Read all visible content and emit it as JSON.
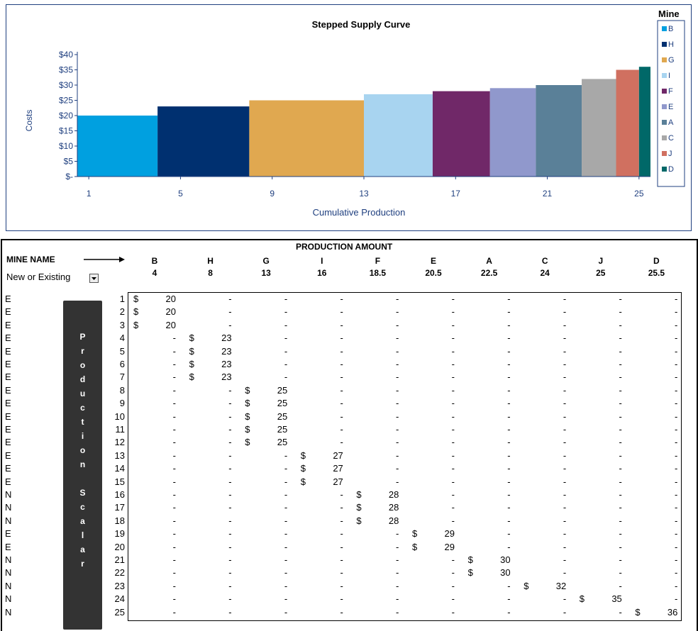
{
  "chart_data": {
    "type": "bar",
    "title": "Stepped Supply Curve",
    "xlabel": "Cumulative Production",
    "ylabel": "Costs",
    "y_ticks": [
      "$40",
      "$35",
      "$30",
      "$25",
      "$20",
      "$15",
      "$10",
      "$5",
      "$-"
    ],
    "y_tick_values": [
      40,
      35,
      30,
      25,
      20,
      15,
      10,
      5,
      0
    ],
    "ylim": [
      0,
      40
    ],
    "x_ticks": [
      "1",
      "5",
      "9",
      "13",
      "17",
      "21",
      "25"
    ],
    "x_tick_values": [
      1,
      5,
      9,
      13,
      17,
      21,
      25
    ],
    "xlim": [
      0.5,
      25.5
    ],
    "legend_title": "Mine",
    "legend_position": "right",
    "series": [
      {
        "name": "B",
        "start": 0.5,
        "end": 4,
        "value": 20,
        "color": "#00a0e0"
      },
      {
        "name": "H",
        "start": 4,
        "end": 8,
        "value": 23,
        "color": "#003070"
      },
      {
        "name": "G",
        "start": 8,
        "end": 13,
        "value": 25,
        "color": "#e0a850"
      },
      {
        "name": "I",
        "start": 13,
        "end": 16,
        "value": 27,
        "color": "#a8d4f0"
      },
      {
        "name": "F",
        "start": 16,
        "end": 18.5,
        "value": 28,
        "color": "#702868"
      },
      {
        "name": "E",
        "start": 18.5,
        "end": 20.5,
        "value": 29,
        "color": "#9098cc"
      },
      {
        "name": "A",
        "start": 20.5,
        "end": 22.5,
        "value": 30,
        "color": "#5a8098"
      },
      {
        "name": "C",
        "start": 22.5,
        "end": 24,
        "value": 32,
        "color": "#a8a8a8"
      },
      {
        "name": "J",
        "start": 24,
        "end": 25,
        "value": 35,
        "color": "#d07060"
      },
      {
        "name": "D",
        "start": 25,
        "end": 25.5,
        "value": 36,
        "color": "#006868"
      }
    ]
  },
  "table": {
    "header_title": "PRODUCTION AMOUNT",
    "mine_name_label": "MINE NAME",
    "new_existing_label": "New or Existing",
    "scalar_label": [
      "P",
      "r",
      "o",
      "d",
      "u",
      "c",
      "t",
      "i",
      "o",
      "n",
      "",
      "S",
      "c",
      "a",
      "l",
      "a",
      "r"
    ],
    "mines": [
      "B",
      "H",
      "G",
      "I",
      "F",
      "E",
      "A",
      "C",
      "J",
      "D"
    ],
    "amounts": [
      "4",
      "8",
      "13",
      "16",
      "18.5",
      "20.5",
      "22.5",
      "24",
      "25",
      "25.5"
    ],
    "costs": [
      "20",
      "23",
      "25",
      "27",
      "28",
      "29",
      "30",
      "32",
      "35",
      "36"
    ],
    "dash": "-",
    "dollar": "$",
    "rows": [
      {
        "status": "E",
        "num": "1",
        "mine_index": 0
      },
      {
        "status": "E",
        "num": "2",
        "mine_index": 0
      },
      {
        "status": "E",
        "num": "3",
        "mine_index": 0
      },
      {
        "status": "E",
        "num": "4",
        "mine_index": 1
      },
      {
        "status": "E",
        "num": "5",
        "mine_index": 1
      },
      {
        "status": "E",
        "num": "6",
        "mine_index": 1
      },
      {
        "status": "E",
        "num": "7",
        "mine_index": 1
      },
      {
        "status": "E",
        "num": "8",
        "mine_index": 2
      },
      {
        "status": "E",
        "num": "9",
        "mine_index": 2
      },
      {
        "status": "E",
        "num": "10",
        "mine_index": 2
      },
      {
        "status": "E",
        "num": "11",
        "mine_index": 2
      },
      {
        "status": "E",
        "num": "12",
        "mine_index": 2
      },
      {
        "status": "E",
        "num": "13",
        "mine_index": 3
      },
      {
        "status": "E",
        "num": "14",
        "mine_index": 3
      },
      {
        "status": "E",
        "num": "15",
        "mine_index": 3
      },
      {
        "status": "N",
        "num": "16",
        "mine_index": 4
      },
      {
        "status": "N",
        "num": "17",
        "mine_index": 4
      },
      {
        "status": "N",
        "num": "18",
        "mine_index": 4
      },
      {
        "status": "E",
        "num": "19",
        "mine_index": 5
      },
      {
        "status": "E",
        "num": "20",
        "mine_index": 5
      },
      {
        "status": "N",
        "num": "21",
        "mine_index": 6
      },
      {
        "status": "N",
        "num": "22",
        "mine_index": 6
      },
      {
        "status": "N",
        "num": "23",
        "mine_index": 7
      },
      {
        "status": "N",
        "num": "24",
        "mine_index": 8
      },
      {
        "status": "N",
        "num": "25",
        "mine_index": 9
      }
    ]
  }
}
